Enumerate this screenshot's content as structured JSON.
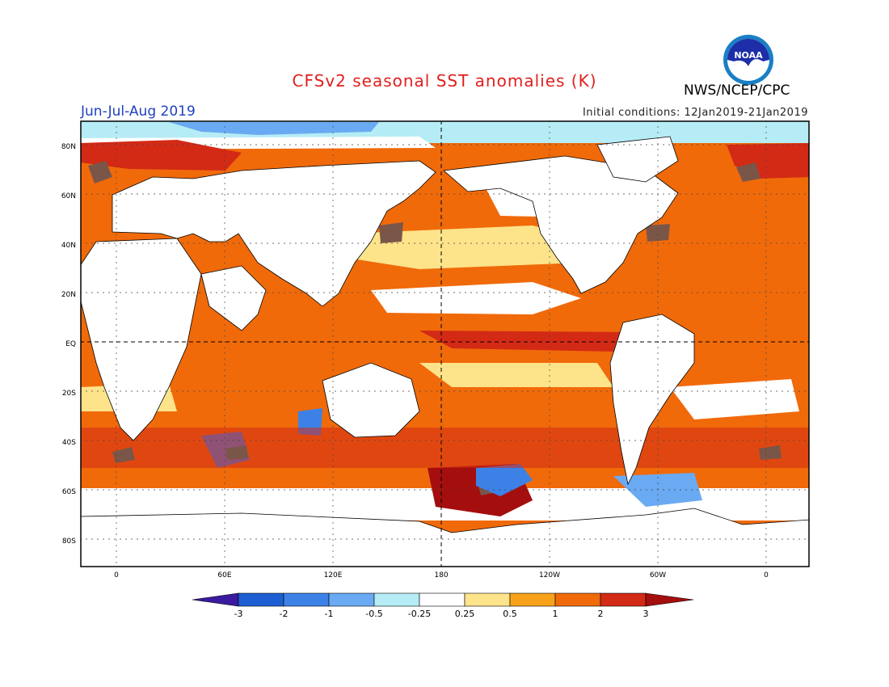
{
  "title": "CFSv2 seasonal SST anomalies (K)",
  "period": "Jun-Jul-Aug 2019",
  "initial_conditions": "Initial conditions: 12Jan2019-21Jan2019",
  "agency": "NWS/NCEP/CPC",
  "logo": {
    "icon": "noaa-logo-icon",
    "text": "NOAA"
  },
  "map": {
    "lat_labels": [
      "80N",
      "60N",
      "40N",
      "20N",
      "EQ",
      "20S",
      "40S",
      "60S",
      "80S"
    ],
    "lon_labels": [
      "0",
      "60E",
      "120E",
      "180",
      "120W",
      "60W",
      "0"
    ]
  },
  "colorbar": {
    "labels": [
      "-3",
      "-2",
      "-1",
      "-0.5",
      "-0.25",
      "0.25",
      "0.5",
      "1",
      "2",
      "3"
    ],
    "colors": [
      "#3a1a9e",
      "#1d5fd3",
      "#3c82e6",
      "#6aaaf2",
      "#b6ecf5",
      "#ffffff",
      "#fde38a",
      "#f7a21a",
      "#f06a0a",
      "#d32a16",
      "#a50e0e",
      "#7a5648"
    ]
  }
}
